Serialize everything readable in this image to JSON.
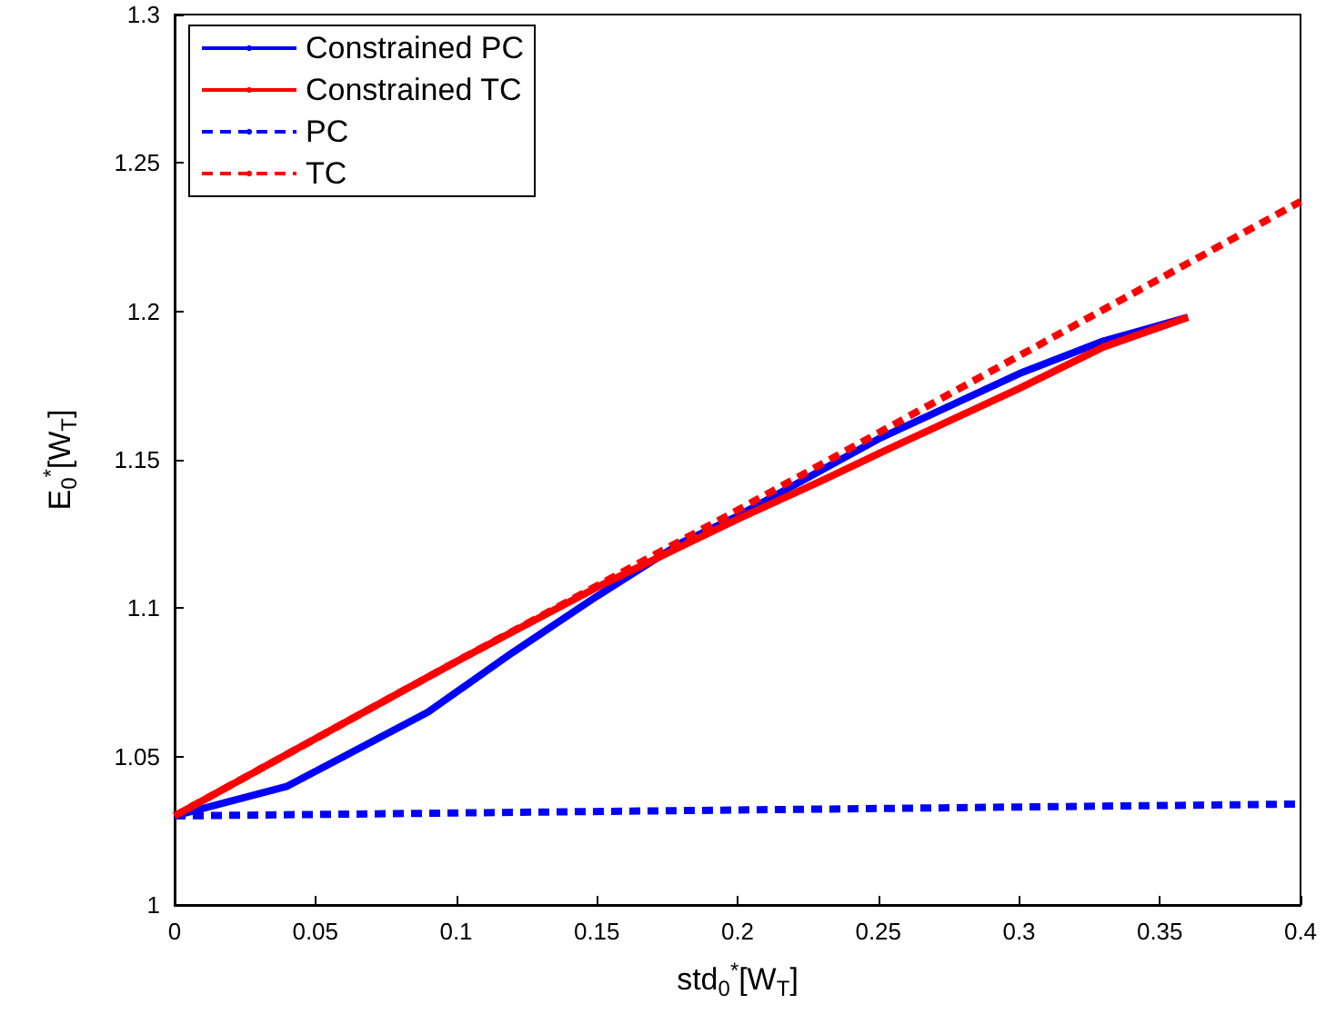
{
  "chart_data": {
    "type": "line",
    "xlabel": "std$_{0}$$^{*}$[W$_{T}$]",
    "ylabel": "E$_{0}$$^{*}$[W$_{T}$]",
    "xlim": [
      0,
      0.4
    ],
    "xticks": [
      0,
      0.05,
      0.1,
      0.15,
      0.2,
      0.25,
      0.3,
      0.35,
      0.4
    ],
    "ylim": [
      1,
      1.3
    ],
    "yticks": [
      1,
      1.05,
      1.1,
      1.15,
      1.2,
      1.25,
      1.3
    ],
    "grid": false,
    "legend": "top left",
    "marker": "none",
    "series": [
      {
        "name": "Constrained PC",
        "color": "#0000ff",
        "line_style": "solid",
        "x": [
          0,
          0.02,
          0.04,
          0.06,
          0.09,
          0.12,
          0.15,
          0.18,
          0.2,
          0.25,
          0.3,
          0.33,
          0.36
        ],
        "values": [
          1.03,
          1.035,
          1.04,
          1.05,
          1.065,
          1.085,
          1.104,
          1.122,
          1.131,
          1.157,
          1.179,
          1.19,
          1.198
        ]
      },
      {
        "name": "Constrained TC",
        "color": "#ff0000",
        "line_style": "solid",
        "x": [
          0,
          0.05,
          0.1,
          0.15,
          0.2,
          0.23,
          0.25,
          0.3,
          0.33,
          0.36
        ],
        "values": [
          1.03,
          1.056,
          1.082,
          1.107,
          1.13,
          1.143,
          1.152,
          1.174,
          1.188,
          1.198
        ]
      },
      {
        "name": "PC",
        "color": "#0000ff",
        "line_style": "dashed",
        "x": [
          0,
          0.1,
          0.2,
          0.3,
          0.4
        ],
        "values": [
          1.03,
          1.031,
          1.032,
          1.033,
          1.034
        ]
      },
      {
        "name": "TC",
        "color": "#ff0000",
        "line_style": "dashed",
        "x": [
          0,
          0.1,
          0.2,
          0.3,
          0.4
        ],
        "values": [
          1.03,
          1.082,
          1.133,
          1.185,
          1.237
        ]
      }
    ]
  }
}
